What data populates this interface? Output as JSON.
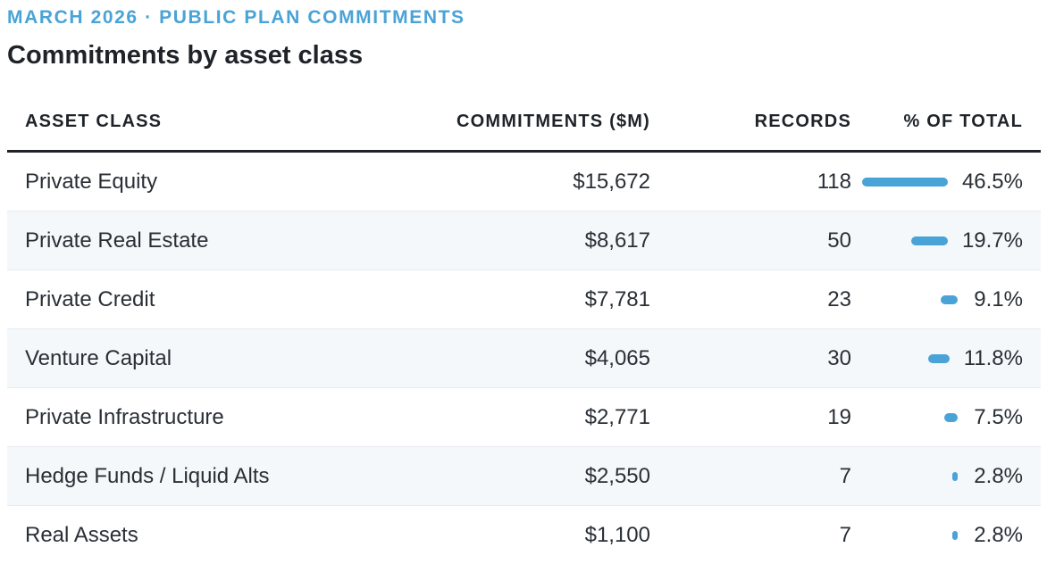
{
  "header": {
    "eyebrow": "MARCH 2026 · PUBLIC PLAN COMMITMENTS",
    "title": "Commitments by asset class"
  },
  "table": {
    "columns": [
      "ASSET CLASS",
      "COMMITMENTS ($M)",
      "RECORDS",
      "% OF TOTAL"
    ],
    "rows": [
      {
        "asset": "Private Equity",
        "commitments": "$15,672",
        "records": "118",
        "pct": "46.5%",
        "share": 46.5
      },
      {
        "asset": "Private Real Estate",
        "commitments": "$8,617",
        "records": "50",
        "pct": "19.7%",
        "share": 19.7
      },
      {
        "asset": "Private Credit",
        "commitments": "$7,781",
        "records": "23",
        "pct": "9.1%",
        "share": 9.1
      },
      {
        "asset": "Venture Capital",
        "commitments": "$4,065",
        "records": "30",
        "pct": "11.8%",
        "share": 11.8
      },
      {
        "asset": "Private Infrastructure",
        "commitments": "$2,771",
        "records": "19",
        "pct": "7.5%",
        "share": 7.5
      },
      {
        "asset": "Hedge Funds / Liquid Alts",
        "commitments": "$2,550",
        "records": "7",
        "pct": "2.8%",
        "share": 2.8
      },
      {
        "asset": "Real Assets",
        "commitments": "$1,100",
        "records": "7",
        "pct": "2.8%",
        "share": 2.8
      }
    ]
  },
  "colors": {
    "accent": "#4aa3d6",
    "text": "#1f2328",
    "stripe": "#f5f8fb"
  }
}
